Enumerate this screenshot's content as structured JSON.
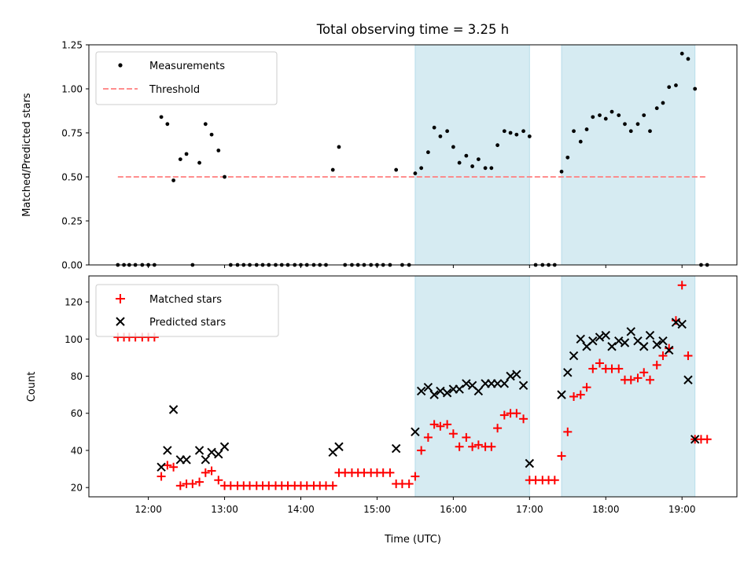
{
  "title": "Total observing time = 3.25 h",
  "colors": {
    "shade": "#add8e6",
    "measurement": "#000000",
    "threshold": "#ff7f7f",
    "matched": "#ff0000",
    "predicted": "#000000"
  },
  "chart_data": [
    {
      "type": "scatter",
      "ylabel": "Matched/Predicted stars",
      "xlim": [
        11.22,
        19.72
      ],
      "ylim": [
        0,
        1.25
      ],
      "yticks": [
        0.0,
        0.25,
        0.5,
        0.75,
        1.0,
        1.25
      ],
      "ytick_labels": [
        "0.00",
        "0.25",
        "0.50",
        "0.75",
        "1.00",
        "1.25"
      ],
      "legend": [
        "Measurements",
        "Threshold"
      ],
      "legend_position": "top-left",
      "shaded_intervals": [
        [
          15.5,
          17.0
        ],
        [
          17.42,
          19.17
        ]
      ],
      "threshold": {
        "value": 0.5,
        "x_range": [
          11.6,
          19.33
        ]
      },
      "series": [
        {
          "name": "Measurements",
          "x": [
            11.6,
            11.68,
            11.75,
            11.83,
            11.92,
            12.0,
            12.08,
            12.17,
            12.25,
            12.33,
            12.42,
            12.5,
            12.58,
            12.67,
            12.75,
            12.83,
            12.92,
            13.0,
            13.08,
            13.17,
            13.25,
            13.33,
            13.42,
            13.5,
            13.58,
            13.67,
            13.75,
            13.83,
            13.92,
            14.0,
            14.08,
            14.17,
            14.25,
            14.33,
            14.42,
            14.5,
            14.58,
            14.67,
            14.75,
            14.83,
            14.92,
            15.0,
            15.08,
            15.17,
            15.25,
            15.33,
            15.42,
            15.5,
            15.58,
            15.67,
            15.75,
            15.83,
            15.92,
            16.0,
            16.08,
            16.17,
            16.25,
            16.33,
            16.42,
            16.5,
            16.58,
            16.67,
            16.75,
            16.83,
            16.92,
            17.0,
            17.08,
            17.17,
            17.25,
            17.33,
            17.42,
            17.5,
            17.58,
            17.67,
            17.75,
            17.83,
            17.92,
            18.0,
            18.08,
            18.17,
            18.25,
            18.33,
            18.42,
            18.5,
            18.58,
            18.67,
            18.75,
            18.83,
            18.92,
            19.0,
            19.08,
            19.17,
            19.25,
            19.33
          ],
          "y": [
            0,
            0,
            0,
            0,
            0,
            0,
            0,
            0.84,
            0.8,
            0.48,
            0.6,
            0.63,
            0,
            0.58,
            0.8,
            0.74,
            0.65,
            0.5,
            0,
            0,
            0,
            0,
            0,
            0,
            0,
            0,
            0,
            0,
            0,
            0,
            0,
            0,
            0,
            0,
            0.54,
            0.67,
            0,
            0,
            0,
            0,
            0,
            0,
            0,
            0,
            0.54,
            0,
            0,
            0.52,
            0.55,
            0.64,
            0.78,
            0.73,
            0.76,
            0.67,
            0.58,
            0.62,
            0.56,
            0.6,
            0.55,
            0.55,
            0.68,
            0.76,
            0.75,
            0.74,
            0.76,
            0.73,
            0,
            0,
            0,
            0,
            0.53,
            0.61,
            0.76,
            0.7,
            0.77,
            0.84,
            0.85,
            0.83,
            0.87,
            0.85,
            0.8,
            0.76,
            0.8,
            0.85,
            0.76,
            0.89,
            0.92,
            1.01,
            1.02,
            1.2,
            1.17,
            1.0,
            0,
            0
          ]
        }
      ]
    },
    {
      "type": "scatter",
      "xlabel": "Time (UTC)",
      "ylabel": "Count",
      "xlim": [
        11.22,
        19.72
      ],
      "ylim": [
        15,
        134
      ],
      "xticks": [
        12,
        13,
        14,
        15,
        16,
        17,
        18,
        19
      ],
      "xtick_labels": [
        "12:00",
        "13:00",
        "14:00",
        "15:00",
        "16:00",
        "17:00",
        "18:00",
        "19:00"
      ],
      "yticks": [
        20,
        40,
        60,
        80,
        100,
        120
      ],
      "ytick_labels": [
        "20",
        "40",
        "60",
        "80",
        "100",
        "120"
      ],
      "legend": [
        "Matched stars",
        "Predicted stars"
      ],
      "legend_position": "top-left",
      "shaded_intervals": [
        [
          15.5,
          17.0
        ],
        [
          17.42,
          19.17
        ]
      ],
      "series": [
        {
          "name": "Matched stars",
          "x": [
            11.6,
            11.68,
            11.75,
            11.83,
            11.92,
            12.0,
            12.08,
            12.17,
            12.25,
            12.33,
            12.42,
            12.5,
            12.58,
            12.67,
            12.75,
            12.83,
            12.92,
            13.0,
            13.08,
            13.17,
            13.25,
            13.33,
            13.42,
            13.5,
            13.58,
            13.67,
            13.75,
            13.83,
            13.92,
            14.0,
            14.08,
            14.17,
            14.25,
            14.33,
            14.42,
            14.5,
            14.58,
            14.67,
            14.75,
            14.83,
            14.92,
            15.0,
            15.08,
            15.17,
            15.25,
            15.33,
            15.42,
            15.5,
            15.58,
            15.67,
            15.75,
            15.83,
            15.92,
            16.0,
            16.08,
            16.17,
            16.25,
            16.33,
            16.42,
            16.5,
            16.58,
            16.67,
            16.75,
            16.83,
            16.92,
            17.0,
            17.08,
            17.17,
            17.25,
            17.33,
            17.42,
            17.5,
            17.58,
            17.67,
            17.75,
            17.83,
            17.92,
            18.0,
            18.08,
            18.17,
            18.25,
            18.33,
            18.42,
            18.5,
            18.58,
            18.67,
            18.75,
            18.83,
            18.92,
            19.0,
            19.08,
            19.17,
            19.25,
            19.33
          ],
          "y": [
            101,
            101,
            101,
            101,
            101,
            101,
            101,
            26,
            32,
            31,
            21,
            22,
            22,
            23,
            28,
            29,
            24,
            21,
            21,
            21,
            21,
            21,
            21,
            21,
            21,
            21,
            21,
            21,
            21,
            21,
            21,
            21,
            21,
            21,
            21,
            28,
            28,
            28,
            28,
            28,
            28,
            28,
            28,
            28,
            22,
            22,
            22,
            26,
            40,
            47,
            54,
            53,
            54,
            49,
            42,
            47,
            42,
            43,
            42,
            42,
            52,
            59,
            60,
            60,
            57,
            24,
            24,
            24,
            24,
            24,
            37,
            50,
            69,
            70,
            74,
            84,
            87,
            84,
            84,
            84,
            78,
            78,
            79,
            82,
            78,
            86,
            91,
            95,
            110,
            129,
            91,
            46,
            46,
            46
          ],
          "marker": "+"
        },
        {
          "name": "Predicted stars",
          "x": [
            12.17,
            12.25,
            12.33,
            12.42,
            12.5,
            12.67,
            12.75,
            12.83,
            12.92,
            13.0,
            14.42,
            14.5,
            15.25,
            15.5,
            15.58,
            15.67,
            15.75,
            15.83,
            15.92,
            16.0,
            16.08,
            16.17,
            16.25,
            16.33,
            16.42,
            16.5,
            16.58,
            16.67,
            16.75,
            16.83,
            16.92,
            17.0,
            17.42,
            17.5,
            17.58,
            17.67,
            17.75,
            17.83,
            17.92,
            18.0,
            18.08,
            18.17,
            18.25,
            18.33,
            18.42,
            18.5,
            18.58,
            18.67,
            18.75,
            18.83,
            18.92,
            19.0,
            19.08,
            19.17
          ],
          "y": [
            31,
            40,
            62,
            35,
            35,
            40,
            35,
            39,
            38,
            42,
            39,
            42,
            41,
            50,
            72,
            74,
            70,
            72,
            71,
            73,
            73,
            76,
            75,
            72,
            76,
            76,
            76,
            76,
            80,
            81,
            75,
            33,
            70,
            82,
            91,
            100,
            96,
            99,
            101,
            102,
            96,
            99,
            98,
            104,
            99,
            96,
            102,
            97,
            99,
            94,
            109,
            108,
            78,
            46
          ],
          "marker": "x"
        }
      ]
    }
  ]
}
